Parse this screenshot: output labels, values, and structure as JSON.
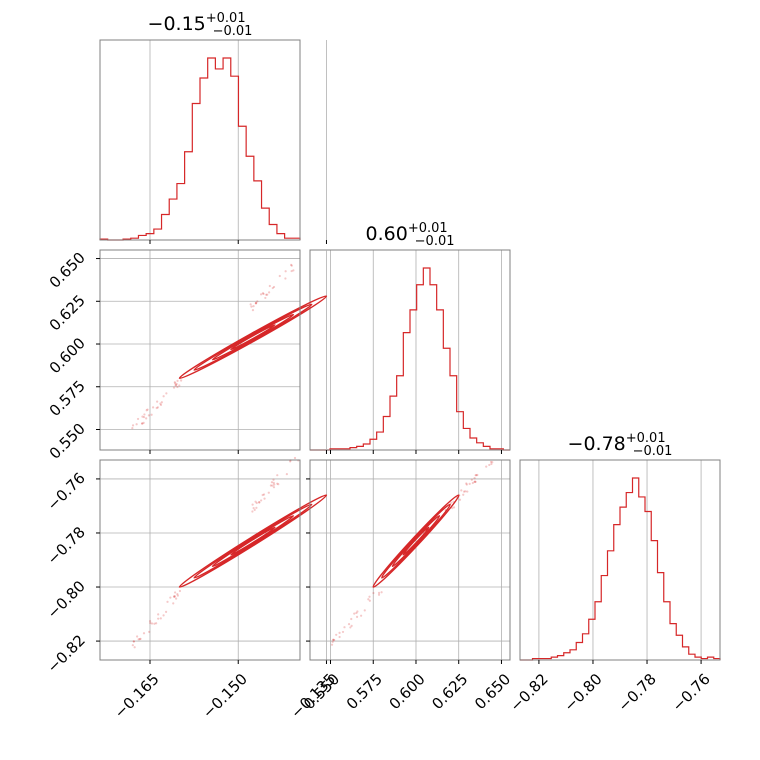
{
  "chart_data": {
    "type": "corner",
    "color": "#d62728",
    "params": [
      {
        "median": "−0.15",
        "plus": "+0.01",
        "minus": "−0.01",
        "range": [
          -0.1735,
          -0.1395
        ],
        "ticks": [
          -0.165,
          -0.15,
          -0.135
        ],
        "tick_labels": [
          "−0.165",
          "−0.150",
          "−0.135"
        ],
        "hist_counts": [
          1,
          0,
          0,
          1,
          2,
          5,
          7,
          12,
          28,
          45,
          62,
          97,
          150,
          178,
          200,
          188,
          200,
          180,
          125,
          92,
          65,
          35,
          17,
          7,
          2,
          2
        ]
      },
      {
        "median": "0.60",
        "plus": "+0.01",
        "minus": "−0.01",
        "range": [
          0.538,
          0.655
        ],
        "ticks": [
          0.55,
          0.575,
          0.6,
          0.625,
          0.65
        ],
        "tick_labels": [
          "0.550",
          "0.575",
          "0.600",
          "0.625",
          "0.650"
        ],
        "hist_counts": [
          0,
          0,
          0,
          1,
          1,
          1,
          2,
          3,
          5,
          9,
          15,
          28,
          45,
          62,
          98,
          117,
          138,
          152,
          138,
          117,
          85,
          62,
          32,
          18,
          10,
          6,
          3,
          1,
          1,
          0
        ]
      },
      {
        "median": "−0.78",
        "plus": "+0.01",
        "minus": "−0.01",
        "range": [
          -0.827,
          -0.753
        ],
        "ticks": [
          -0.82,
          -0.8,
          -0.78,
          -0.76
        ],
        "tick_labels": [
          "−0.82",
          "−0.80",
          "−0.78",
          "−0.76"
        ],
        "hist_counts": [
          0,
          0,
          1,
          1,
          1,
          2,
          3,
          5,
          7,
          12,
          18,
          28,
          40,
          58,
          75,
          93,
          105,
          115,
          125,
          112,
          102,
          82,
          60,
          40,
          25,
          17,
          9,
          4,
          2,
          1,
          2,
          1
        ]
      }
    ],
    "pairs": [
      {
        "row": 1,
        "col": 0,
        "from": [
          -0.168,
          0.55
        ],
        "to": [
          -0.14,
          0.648
        ],
        "core_from": [
          -0.16,
          0.58
        ],
        "core_to": [
          -0.135,
          0.628
        ]
      },
      {
        "row": 2,
        "col": 0,
        "from": [
          -0.168,
          -0.822
        ],
        "to": [
          -0.14,
          -0.752
        ],
        "core_from": [
          -0.16,
          -0.8
        ],
        "core_to": [
          -0.135,
          -0.766
        ]
      },
      {
        "row": 2,
        "col": 1,
        "from": [
          0.55,
          -0.822
        ],
        "to": [
          0.645,
          -0.752
        ],
        "core_from": [
          0.575,
          -0.8
        ],
        "core_to": [
          0.625,
          -0.766
        ]
      }
    ]
  }
}
